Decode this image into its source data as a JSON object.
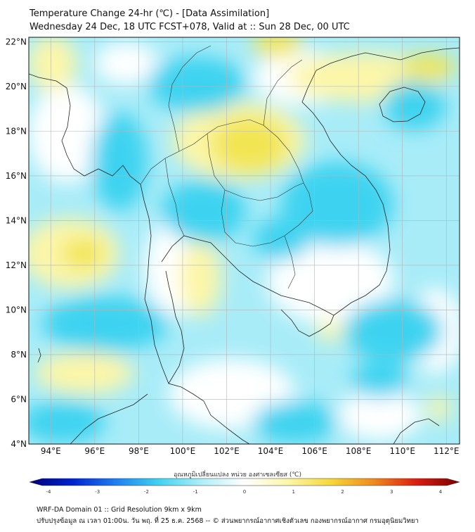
{
  "title": {
    "line1": "Temperature Change 24-hr (℃) - [Data Assimilation]",
    "line2": "Wednesday 24 Dec, 18 UTC FCST+078, Valid at :: Sun 28 Dec, 00 UTC"
  },
  "map": {
    "lon_range": [
      93,
      112.6
    ],
    "lat_range": [
      4,
      22.2
    ],
    "lon_ticks": [
      94,
      96,
      98,
      100,
      102,
      104,
      106,
      108,
      110,
      112
    ],
    "lon_tick_labels": [
      "94°E",
      "96°E",
      "98°E",
      "100°E",
      "102°E",
      "104°E",
      "106°E",
      "108°E",
      "110°E",
      "112°E"
    ],
    "lat_ticks": [
      4,
      6,
      8,
      10,
      12,
      14,
      16,
      18,
      20,
      22
    ],
    "lat_tick_labels": [
      "4°N",
      "6°N",
      "8°N",
      "10°N",
      "12°N",
      "14°N",
      "16°N",
      "18°N",
      "20°N",
      "22°N"
    ],
    "grid": true,
    "field_colors": {
      "cyan": "#3ed3f0",
      "light_cyan": "#a8ecf8",
      "white": "#ffffff",
      "light_yellow": "#fcf6a8",
      "yellow": "#f2e552"
    }
  },
  "colorbar": {
    "title": "อุณหภูมิเปลี่ยนแปลง หน่วย องศาเซลเซียส (℃)",
    "min": -4,
    "max": 4,
    "ticks": [
      -4,
      -3,
      -2,
      -1,
      0,
      1,
      2,
      3,
      4
    ],
    "tick_labels": [
      "-4",
      "-3",
      "-2",
      "-1",
      "0",
      "1",
      "2",
      "3",
      "4"
    ],
    "colors": [
      "#00007a",
      "#0022d0",
      "#1f7ef2",
      "#3ed3f0",
      "#aeeef8",
      "#ffffff",
      "#fcf6a8",
      "#f6d838",
      "#f08a1c",
      "#dc1c10",
      "#7a0000"
    ]
  },
  "footer": {
    "line1": "WRF-DA Domain 01 :: Grid Resolution 9km x 9km",
    "line2": "ปรับปรุงข้อมูล ณ เวลา 01:00น. วัน พฤ. ที่ 25 ธ.ค. 2568 -- © ส่วนพยากรณ์อากาศเชิงตัวเลข กองพยากรณ์อากาศ กรมอุตุนิยมวิทยา"
  }
}
